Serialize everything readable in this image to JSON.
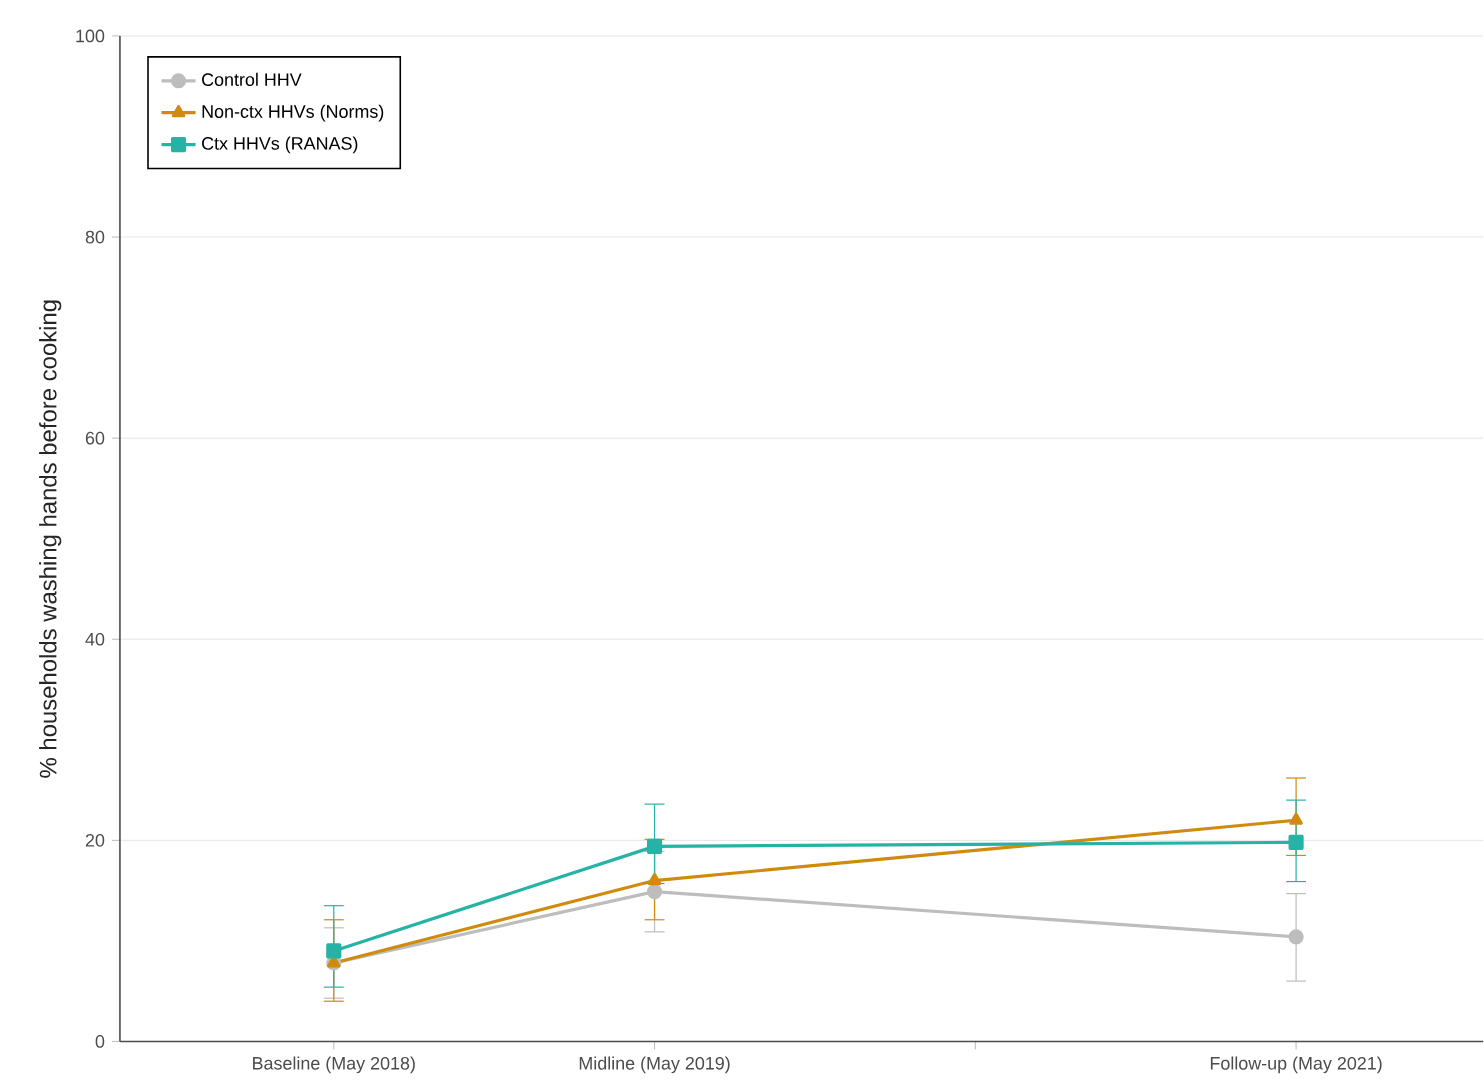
{
  "chart_data": {
    "type": "line",
    "ylabel": "% households washing hands before cooking",
    "x": [
      "2018-05",
      "2019-05",
      "2021-05"
    ],
    "xlim": [
      "2017-09",
      "2021-12"
    ],
    "xticks": [
      {
        "value": "2018-05",
        "label": "Baseline (May 2018)"
      },
      {
        "value": "2019-05",
        "label": "Midline (May 2019)"
      },
      {
        "value": "2020-05",
        "label": null
      },
      {
        "value": "2021-05",
        "label": "Follow-up (May 2021)"
      }
    ],
    "ylim": [
      0,
      100
    ],
    "yticks": [
      0,
      20,
      40,
      60,
      80,
      100
    ],
    "grid": "y",
    "legend": "top left",
    "series": [
      {
        "name": "Control HHV",
        "color": "#bdbdbd",
        "marker": "circle",
        "values": [
          7.8,
          14.9,
          10.4
        ],
        "errors": [
          3.5,
          4.0,
          [
            6.0,
            14.7
          ]
        ]
      },
      {
        "name": "Non-ctx HHVs (Norms)",
        "color": "#d08a0c",
        "marker": "triangle",
        "values": [
          7.8,
          16.0,
          22.0
        ],
        "errors": [
          [
            4.0,
            12.1
          ],
          [
            12.1,
            20.1
          ],
          [
            18.5,
            26.2
          ]
        ]
      },
      {
        "name": "Ctx HHVs (RANAS)",
        "color": "#26b3a6",
        "marker": "square",
        "values": [
          9.0,
          19.4,
          19.8
        ],
        "errors": [
          [
            5.4,
            13.5
          ],
          [
            15.7,
            23.6
          ],
          [
            15.9,
            24.0
          ]
        ]
      }
    ]
  }
}
